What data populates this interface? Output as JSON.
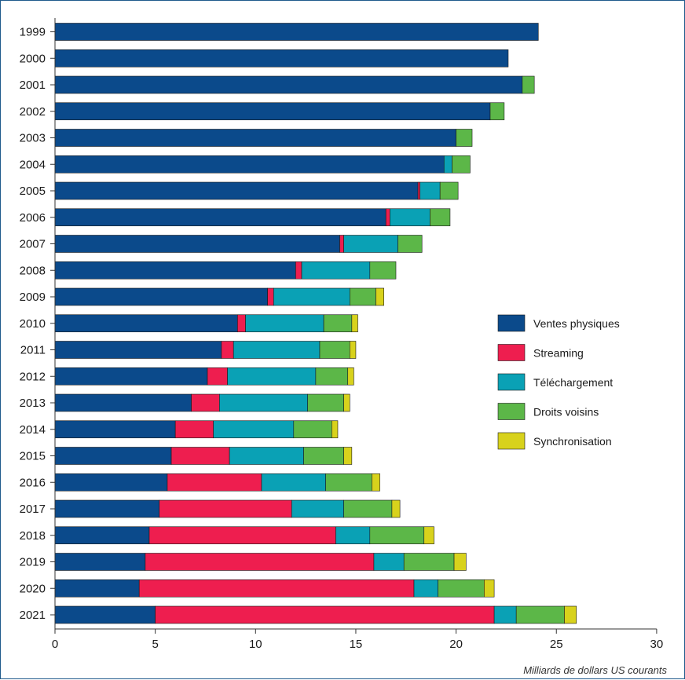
{
  "chart_data": {
    "type": "bar",
    "orientation": "horizontal",
    "stacked": true,
    "xlabel": "Milliards de dollars US courants",
    "xlim": [
      0,
      30
    ],
    "xticks": [
      0,
      5,
      10,
      15,
      20,
      25,
      30
    ],
    "grid": false,
    "legend_position": "right",
    "categories": [
      "1999",
      "2000",
      "2001",
      "2002",
      "2003",
      "2004",
      "2005",
      "2006",
      "2007",
      "2008",
      "2009",
      "2010",
      "2011",
      "2012",
      "2013",
      "2014",
      "2015",
      "2016",
      "2017",
      "2018",
      "2019",
      "2020",
      "2021"
    ],
    "series": [
      {
        "name": "Ventes physiques",
        "color": "#0b4a8b",
        "values": [
          24.1,
          22.6,
          23.3,
          21.7,
          20.0,
          19.4,
          18.1,
          16.5,
          14.2,
          12.0,
          10.6,
          9.1,
          8.3,
          7.6,
          6.8,
          6.0,
          5.8,
          5.6,
          5.2,
          4.7,
          4.5,
          4.2,
          5.0
        ]
      },
      {
        "name": "Streaming",
        "color": "#ee1e4f",
        "values": [
          0,
          0,
          0,
          0,
          0,
          0,
          0.1,
          0.2,
          0.2,
          0.3,
          0.3,
          0.4,
          0.6,
          1.0,
          1.4,
          1.9,
          2.9,
          4.7,
          6.6,
          9.3,
          11.4,
          13.7,
          16.9
        ]
      },
      {
        "name": "Téléchargement",
        "color": "#0aa1b5",
        "values": [
          0,
          0,
          0,
          0,
          0,
          0.4,
          1.0,
          2.0,
          2.7,
          3.4,
          3.8,
          3.9,
          4.3,
          4.4,
          4.4,
          4.0,
          3.7,
          3.2,
          2.6,
          1.7,
          1.5,
          1.2,
          1.1
        ]
      },
      {
        "name": "Droits voisins",
        "color": "#5cb748",
        "values": [
          0,
          0,
          0.6,
          0.7,
          0.8,
          0.9,
          0.9,
          1.0,
          1.2,
          1.3,
          1.3,
          1.4,
          1.5,
          1.6,
          1.8,
          1.9,
          2.0,
          2.3,
          2.4,
          2.7,
          2.5,
          2.3,
          2.4
        ]
      },
      {
        "name": "Synchronisation",
        "color": "#d8d21c",
        "values": [
          0,
          0,
          0,
          0,
          0,
          0,
          0,
          0,
          0,
          0,
          0.4,
          0.3,
          0.3,
          0.3,
          0.3,
          0.3,
          0.4,
          0.4,
          0.4,
          0.5,
          0.6,
          0.5,
          0.6
        ]
      }
    ]
  }
}
